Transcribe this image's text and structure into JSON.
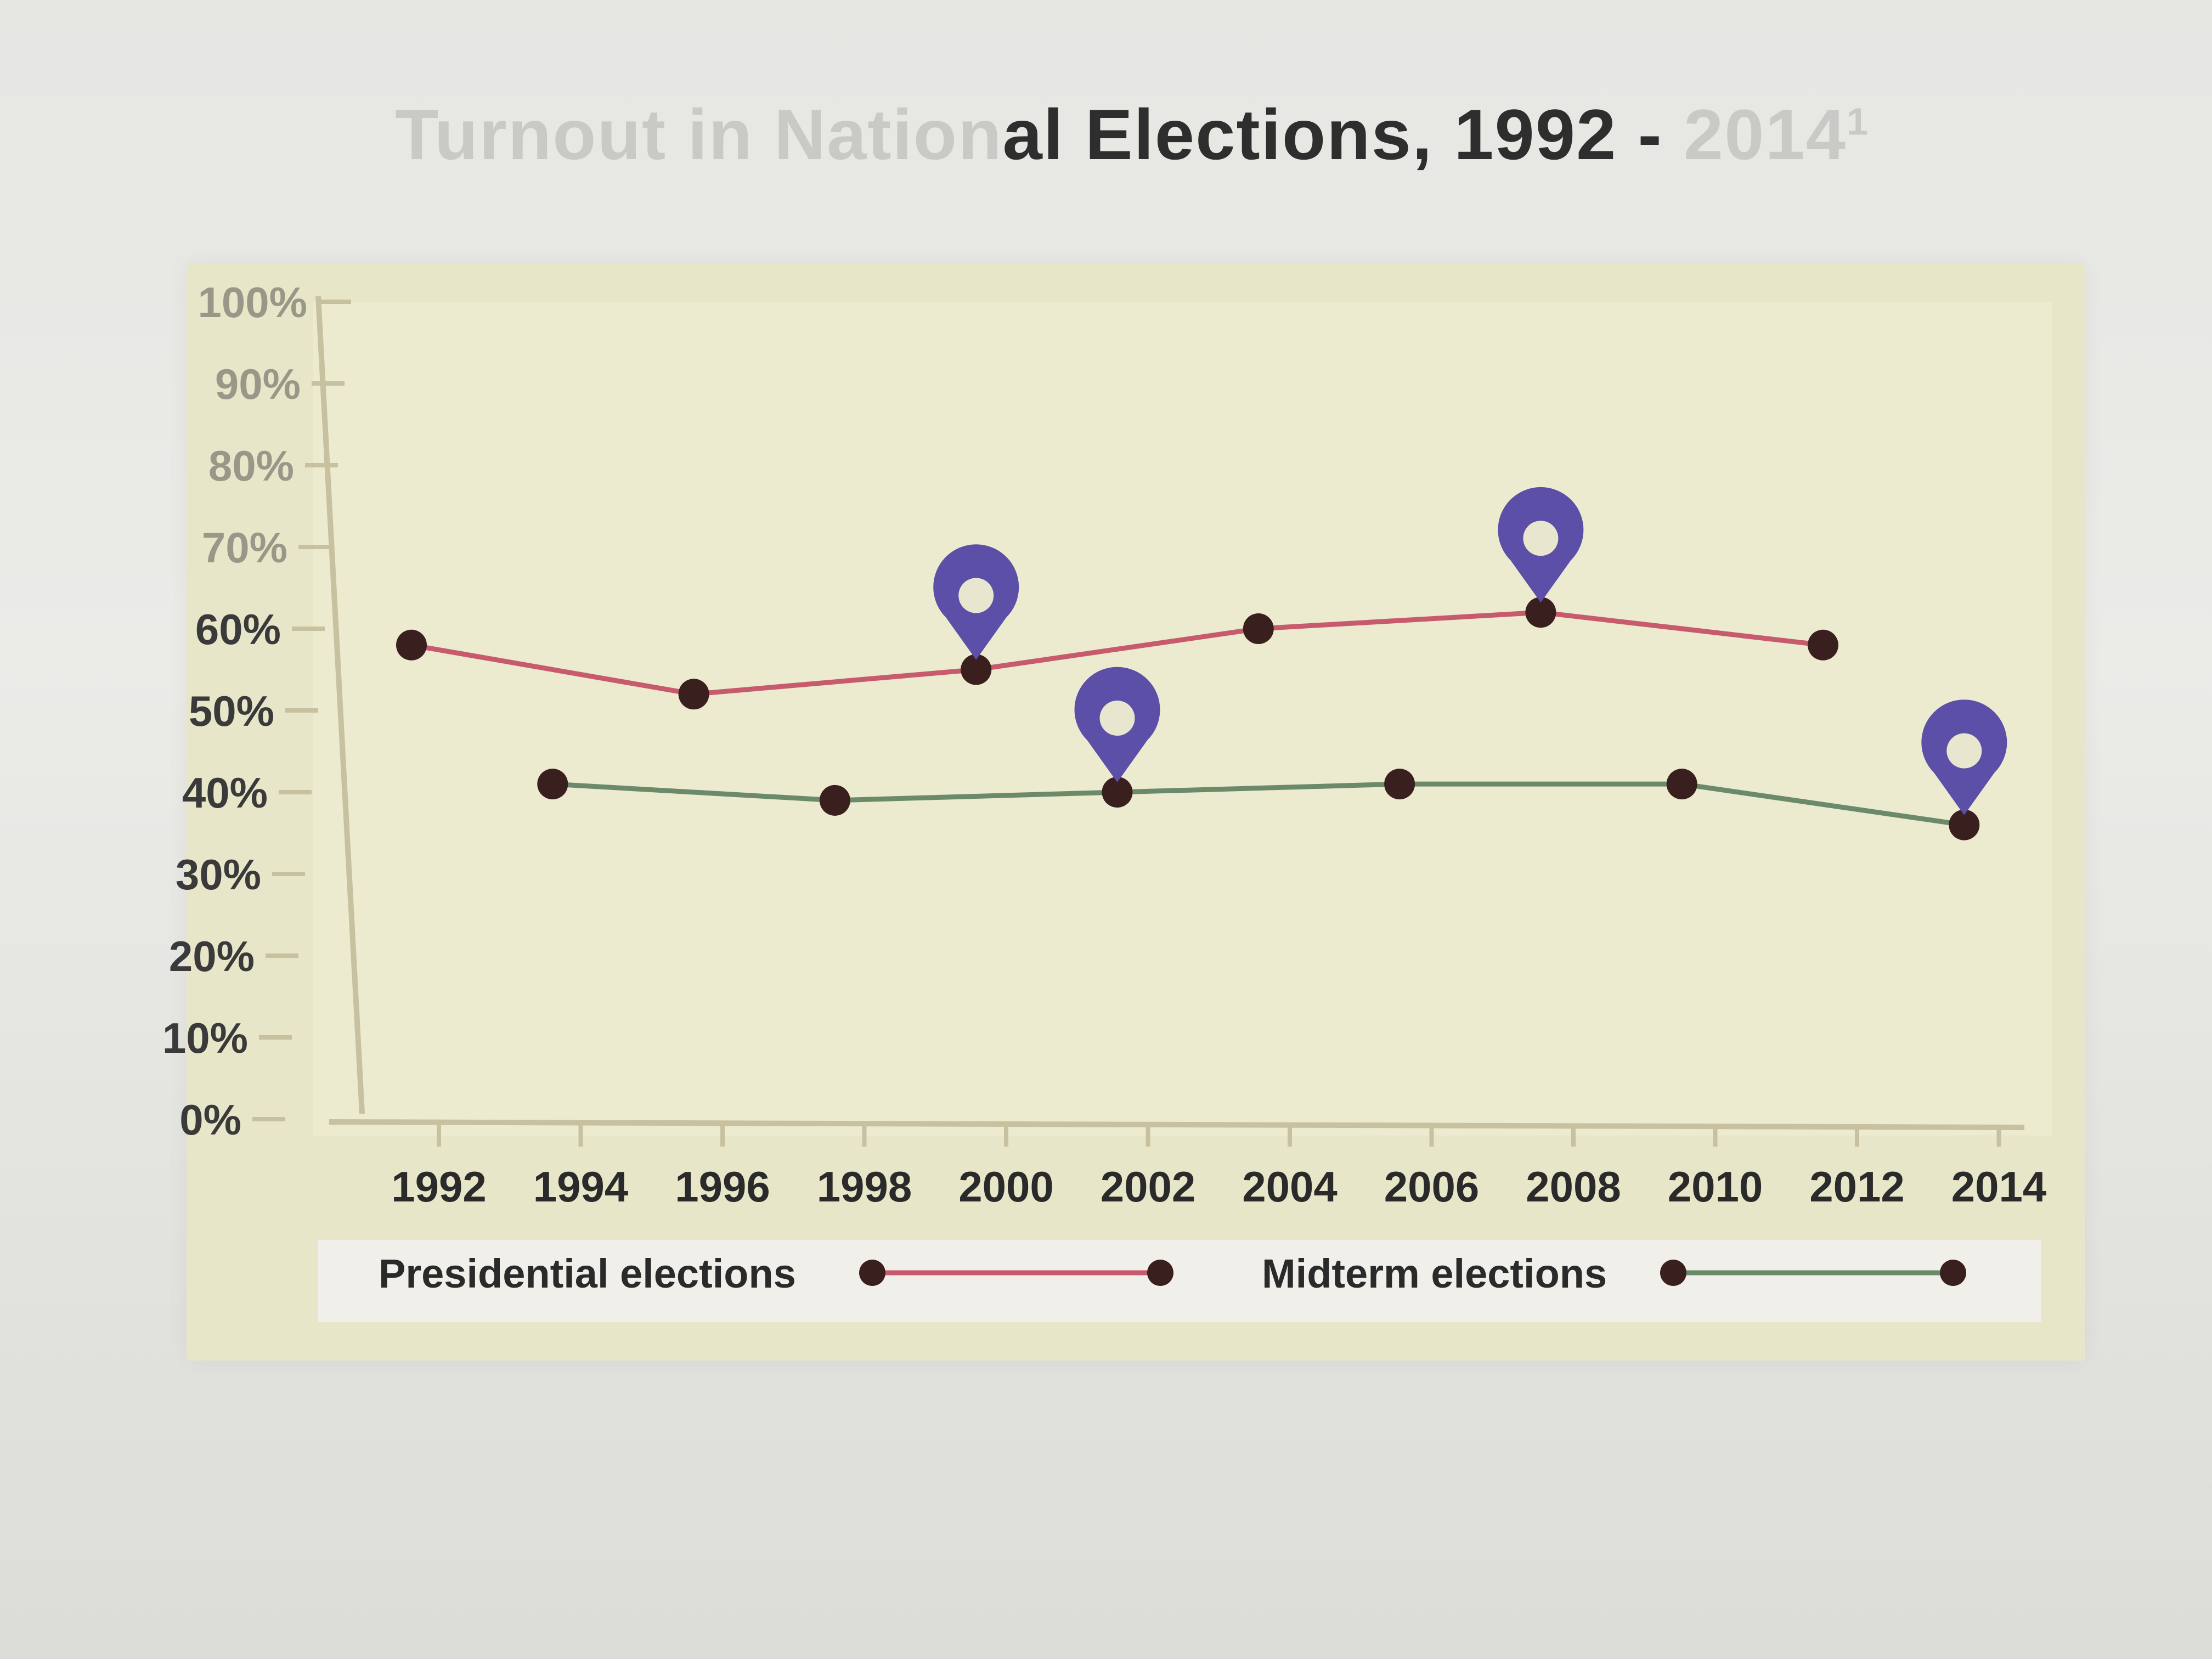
{
  "chart_data": {
    "type": "line",
    "title": "Turnout in National Elections, 1992 - 2014",
    "title_footnote_mark": "1",
    "xlabel": "",
    "ylabel": "",
    "ylim": [
      0,
      100
    ],
    "y_ticks": [
      "0%",
      "10%",
      "20%",
      "30%",
      "40%",
      "50%",
      "60%",
      "70%",
      "80%",
      "90%",
      "100%"
    ],
    "x_ticks": [
      "1992",
      "1994",
      "1996",
      "1998",
      "2000",
      "2002",
      "2004",
      "2006",
      "2008",
      "2010",
      "2012",
      "2014"
    ],
    "series": [
      {
        "name": "Presidential elections",
        "color": "#c85a6e",
        "x": [
          1992,
          1996,
          2000,
          2004,
          2008,
          2012
        ],
        "values": [
          58,
          52,
          55,
          60,
          62,
          58
        ]
      },
      {
        "name": "Midterm elections",
        "color": "#6a8a6a",
        "x": [
          1994,
          1998,
          2002,
          2006,
          2010,
          2014
        ],
        "values": [
          41,
          39,
          40,
          41,
          41,
          36
        ]
      }
    ],
    "markers": [
      {
        "series": "Presidential elections",
        "x": 2000,
        "icon": "location-pin-icon"
      },
      {
        "series": "Presidential elections",
        "x": 2008,
        "icon": "location-pin-icon"
      },
      {
        "series": "Midterm elections",
        "x": 2002,
        "icon": "location-pin-icon"
      },
      {
        "series": "Midterm elections",
        "x": 2014,
        "icon": "location-pin-icon"
      }
    ],
    "marker_color": "#5b4fa8",
    "point_color": "#3a1f1f",
    "grid": false,
    "legend_position": "bottom"
  }
}
